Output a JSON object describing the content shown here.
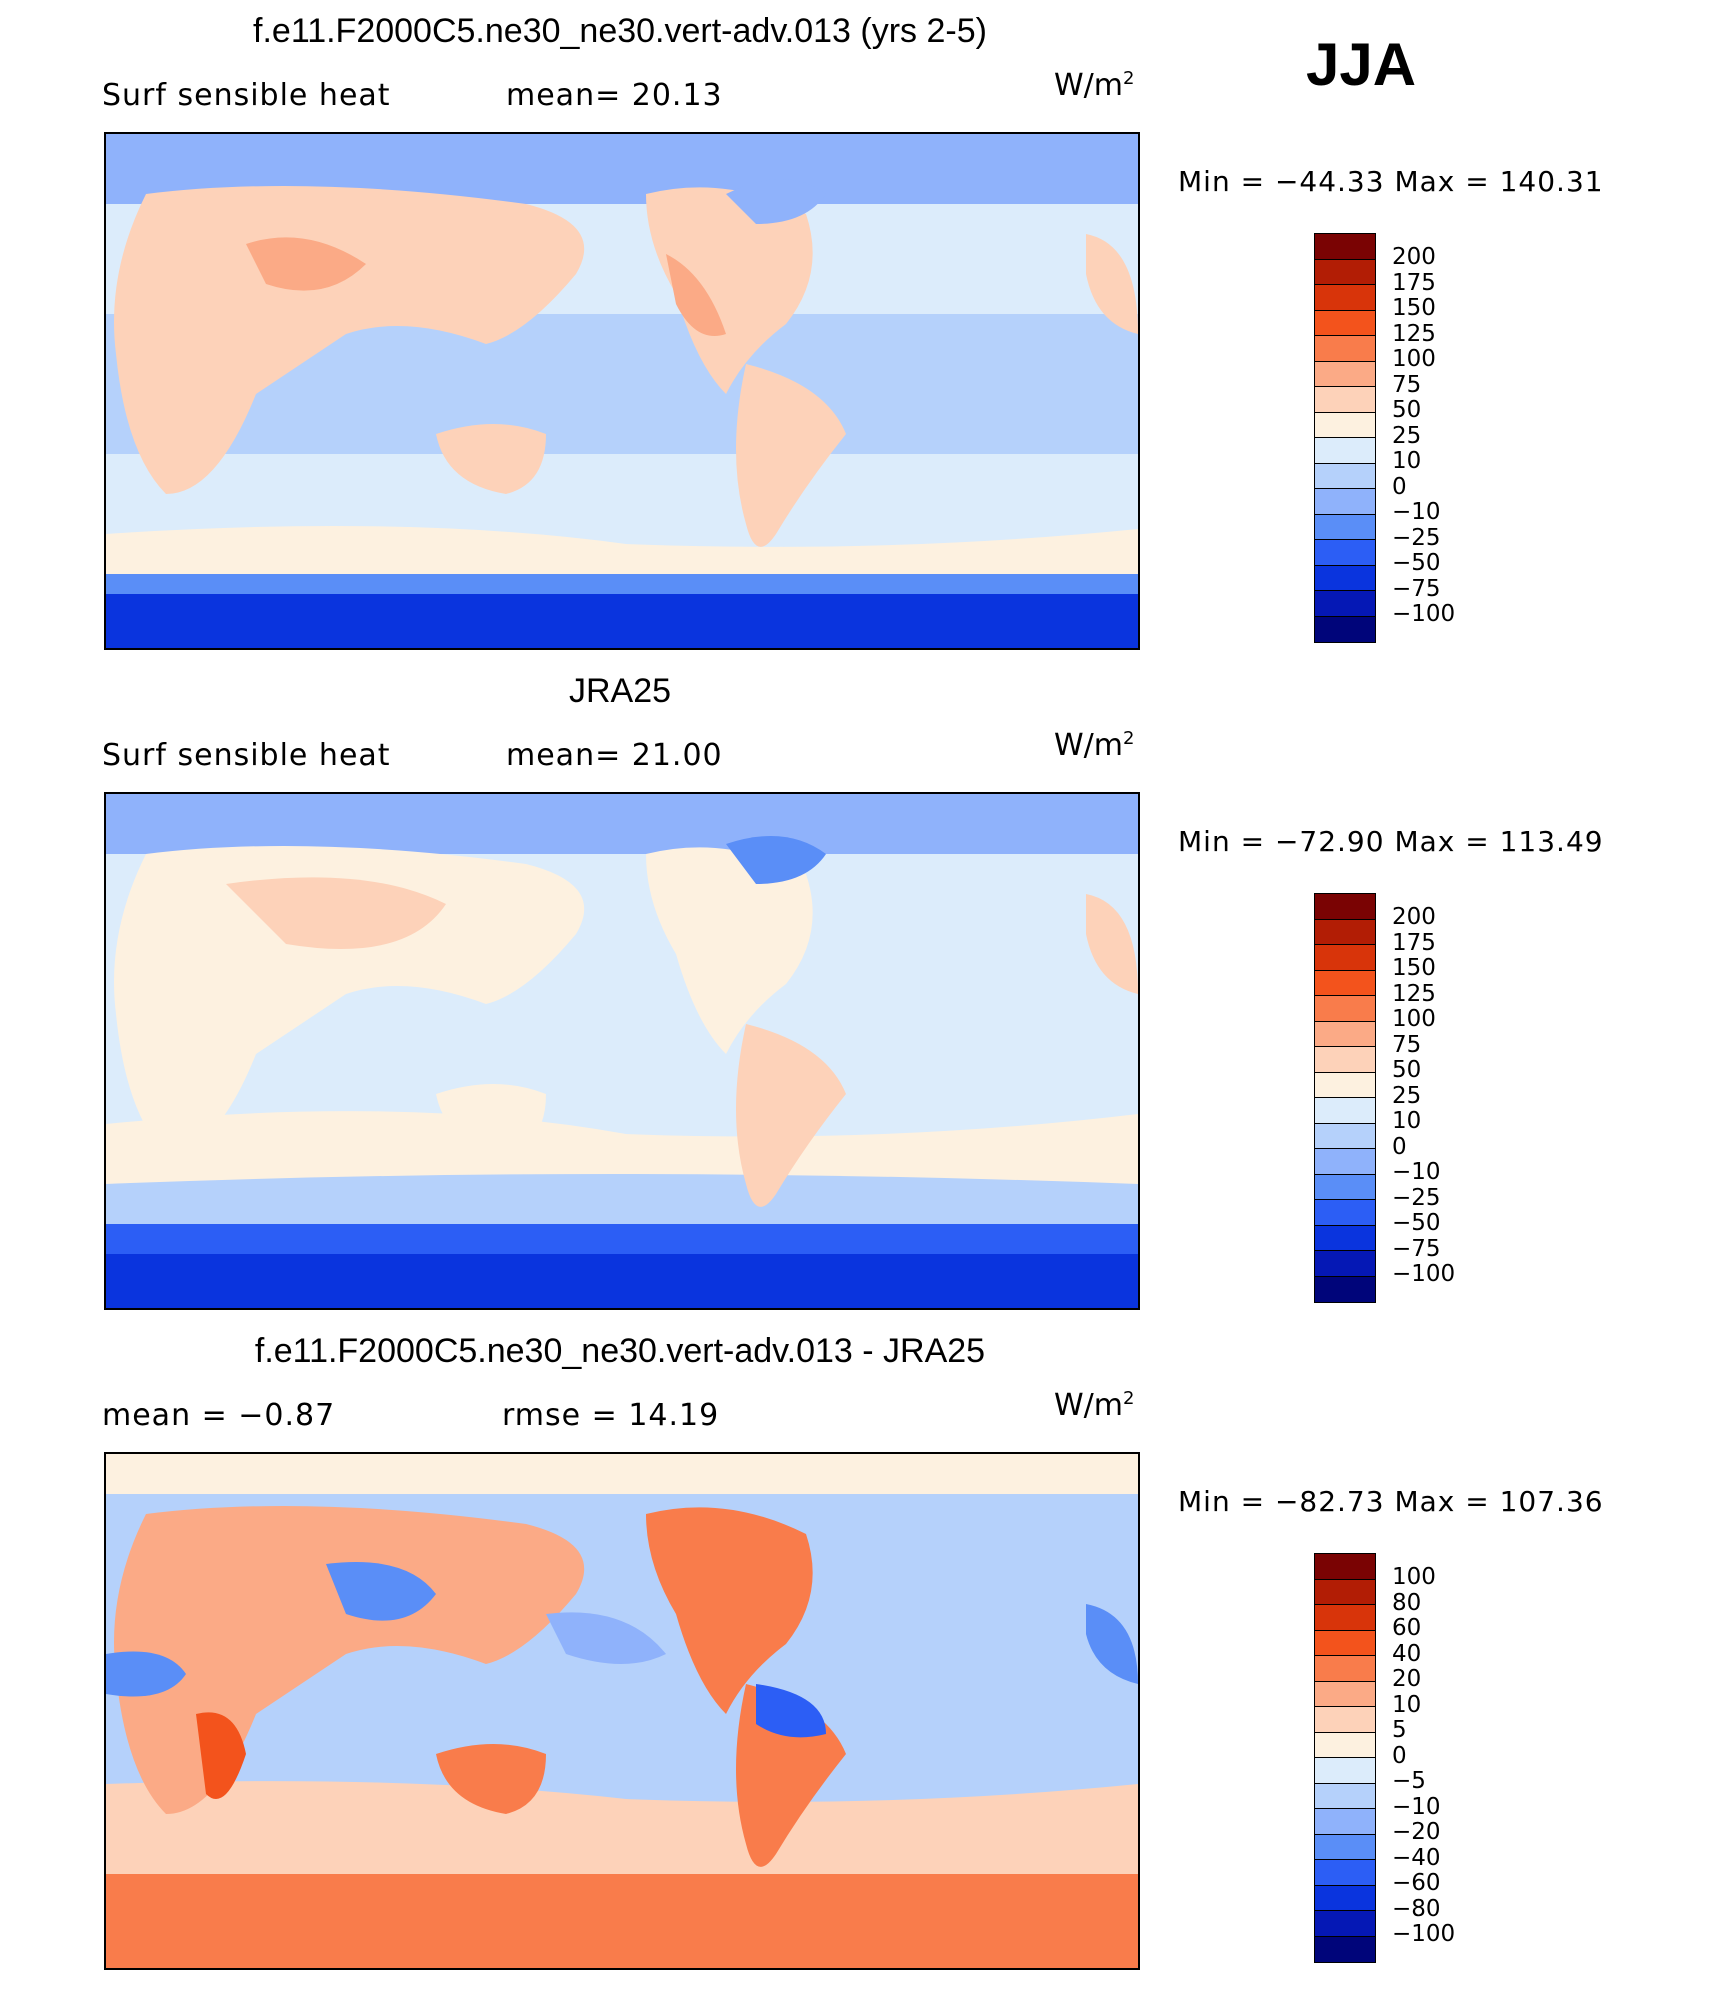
{
  "season": "JJA",
  "panels": [
    {
      "title": "f.e11.F2000C5.ne30_ne30.vert-adv.013 (yrs 2-5)",
      "left_label": "Surf  sensible  heat",
      "right_label": "mean=   20.13",
      "units": "W/m",
      "units_sup": "2",
      "minmax": "Min  =  −44.33  Max  =  140.31",
      "colorbar": {
        "colors": [
          "#7a0303",
          "#b21d05",
          "#d8340a",
          "#f3531c",
          "#f97c4b",
          "#fbaa86",
          "#fdd2b9",
          "#fdf1e0",
          "#dcecfb",
          "#b5d1fb",
          "#8fb2fb",
          "#5a8ef7",
          "#2c5ef5",
          "#0a34de",
          "#0518b5",
          "#00057a"
        ],
        "labels": [
          "200",
          "175",
          "150",
          "125",
          "100",
          "75",
          "50",
          "25",
          "10",
          "0",
          "−10",
          "−25",
          "−50",
          "−75",
          "−100"
        ]
      }
    },
    {
      "title": "JRA25",
      "left_label": "Surf  sensible  heat",
      "right_label": "mean=   21.00",
      "units": "W/m",
      "units_sup": "2",
      "minmax": "Min  =  −72.90  Max  =  113.49",
      "colorbar": {
        "colors": [
          "#7a0303",
          "#b21d05",
          "#d8340a",
          "#f3531c",
          "#f97c4b",
          "#fbaa86",
          "#fdd2b9",
          "#fdf1e0",
          "#dcecfb",
          "#b5d1fb",
          "#8fb2fb",
          "#5a8ef7",
          "#2c5ef5",
          "#0a34de",
          "#0518b5",
          "#00057a"
        ],
        "labels": [
          "200",
          "175",
          "150",
          "125",
          "100",
          "75",
          "50",
          "25",
          "10",
          "0",
          "−10",
          "−25",
          "−50",
          "−75",
          "−100"
        ]
      }
    },
    {
      "title": "f.e11.F2000C5.ne30_ne30.vert-adv.013 - JRA25",
      "left_label": "mean  =    −0.87",
      "right_label": "rmse  =    14.19",
      "units": "W/m",
      "units_sup": "2",
      "minmax": "Min  =  −82.73  Max  =  107.36",
      "colorbar": {
        "colors": [
          "#7a0303",
          "#b21d05",
          "#d8340a",
          "#f3531c",
          "#f97c4b",
          "#fbaa86",
          "#fdd2b9",
          "#fdf1e0",
          "#dcecfb",
          "#b5d1fb",
          "#8fb2fb",
          "#5a8ef7",
          "#2c5ef5",
          "#0a34de",
          "#0518b5",
          "#00057a"
        ],
        "labels": [
          "100",
          "80",
          "60",
          "40",
          "20",
          "10",
          "5",
          "0",
          "−5",
          "−10",
          "−20",
          "−40",
          "−60",
          "−80",
          "−100"
        ]
      }
    }
  ]
}
